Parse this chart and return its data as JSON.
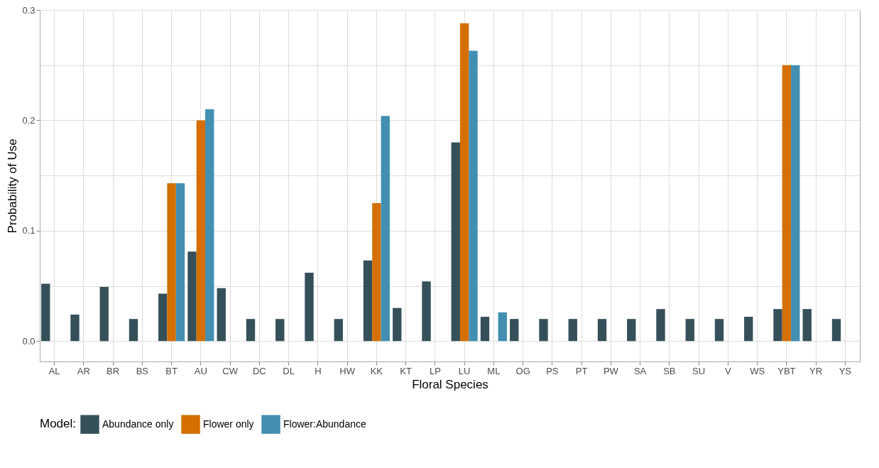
{
  "chart_data": {
    "type": "bar",
    "xlabel": "Floral Species",
    "ylabel": "Probability of Use",
    "legend_title": "Model:",
    "legend": "bottom",
    "grid": true,
    "categories": [
      "AL",
      "AR",
      "BR",
      "BS",
      "BT",
      "AU",
      "CW",
      "DC",
      "DL",
      "H",
      "HW",
      "KK",
      "KT",
      "LP",
      "LU",
      "ML",
      "OG",
      "PS",
      "PT",
      "PW",
      "SA",
      "SB",
      "SU",
      "V",
      "WS",
      "YBT",
      "YR",
      "YS"
    ],
    "ylim": [
      -0.0185,
      0.3
    ],
    "yticks": [
      {
        "value": 0.0,
        "label": "0.0"
      },
      {
        "value": 0.05,
        "label": null
      },
      {
        "value": 0.1,
        "label": "0.1"
      },
      {
        "value": 0.15,
        "label": null
      },
      {
        "value": 0.2,
        "label": "0.2"
      },
      {
        "value": 0.25,
        "label": null
      },
      {
        "value": 0.3,
        "label": "0.3"
      }
    ],
    "series": [
      {
        "name": "Abundance only",
        "color": "#36505a",
        "values": [
          0.052,
          0.024,
          0.049,
          0.02,
          0.043,
          0.081,
          0.048,
          0.02,
          0.02,
          0.062,
          0.02,
          0.073,
          0.03,
          0.054,
          0.18,
          0.022,
          0.02,
          0.02,
          0.02,
          0.02,
          0.02,
          0.029,
          0.02,
          0.02,
          0.022,
          0.029,
          0.029,
          0.02
        ]
      },
      {
        "name": "Flower only",
        "color": "#d46f00",
        "values": [
          null,
          null,
          null,
          null,
          0.143,
          0.2,
          null,
          null,
          null,
          null,
          null,
          0.125,
          null,
          null,
          0.288,
          null,
          null,
          null,
          null,
          null,
          null,
          null,
          null,
          null,
          null,
          0.25,
          null,
          null
        ]
      },
      {
        "name": "Flower:Abundance",
        "color": "#428fb2",
        "values": [
          null,
          null,
          null,
          null,
          0.143,
          0.21,
          null,
          null,
          null,
          null,
          null,
          0.204,
          null,
          null,
          0.263,
          0.026,
          null,
          null,
          null,
          null,
          null,
          null,
          null,
          null,
          null,
          0.25,
          null,
          null
        ]
      }
    ]
  }
}
